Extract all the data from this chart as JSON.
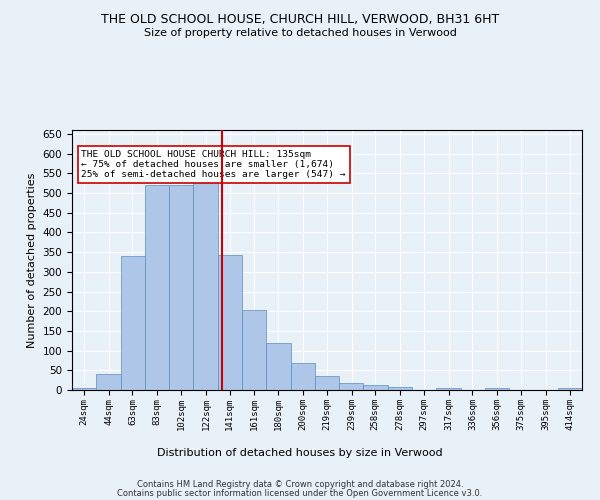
{
  "title": "THE OLD SCHOOL HOUSE, CHURCH HILL, VERWOOD, BH31 6HT",
  "subtitle": "Size of property relative to detached houses in Verwood",
  "xlabel": "Distribution of detached houses by size in Verwood",
  "ylabel": "Number of detached properties",
  "bar_labels": [
    "24sqm",
    "44sqm",
    "63sqm",
    "83sqm",
    "102sqm",
    "122sqm",
    "141sqm",
    "161sqm",
    "180sqm",
    "200sqm",
    "219sqm",
    "239sqm",
    "258sqm",
    "278sqm",
    "297sqm",
    "317sqm",
    "336sqm",
    "356sqm",
    "375sqm",
    "395sqm",
    "414sqm"
  ],
  "x_positions": [
    24,
    44,
    63,
    83,
    102,
    122,
    141,
    161,
    180,
    200,
    219,
    239,
    258,
    278,
    297,
    317,
    336,
    356,
    375,
    395,
    414
  ],
  "bin_edges": [
    14.5,
    34,
    53.5,
    73,
    92.5,
    112,
    131.5,
    151,
    170.5,
    190,
    209.5,
    229,
    248.5,
    268,
    287.5,
    307,
    326.5,
    346,
    365.5,
    385,
    404.5,
    424
  ],
  "bar_heights": [
    5,
    40,
    340,
    520,
    520,
    535,
    343,
    203,
    120,
    68,
    36,
    19,
    13,
    8,
    0,
    5,
    0,
    5,
    0,
    0,
    5
  ],
  "bar_color": "#aec6e8",
  "bar_edge_color": "#5a8fc0",
  "vline_x": 135,
  "vline_color": "#cc0000",
  "ylim": [
    0,
    660
  ],
  "yticks": [
    0,
    50,
    100,
    150,
    200,
    250,
    300,
    350,
    400,
    450,
    500,
    550,
    600,
    650
  ],
  "annotation_text": "THE OLD SCHOOL HOUSE CHURCH HILL: 135sqm\n← 75% of detached houses are smaller (1,674)\n25% of semi-detached houses are larger (547) →",
  "annotation_box_color": "#ffffff",
  "annotation_border_color": "#cc0000",
  "footer_line1": "Contains HM Land Registry data © Crown copyright and database right 2024.",
  "footer_line2": "Contains public sector information licensed under the Open Government Licence v3.0.",
  "background_color": "#e8f0f8",
  "grid_color": "#ffffff"
}
